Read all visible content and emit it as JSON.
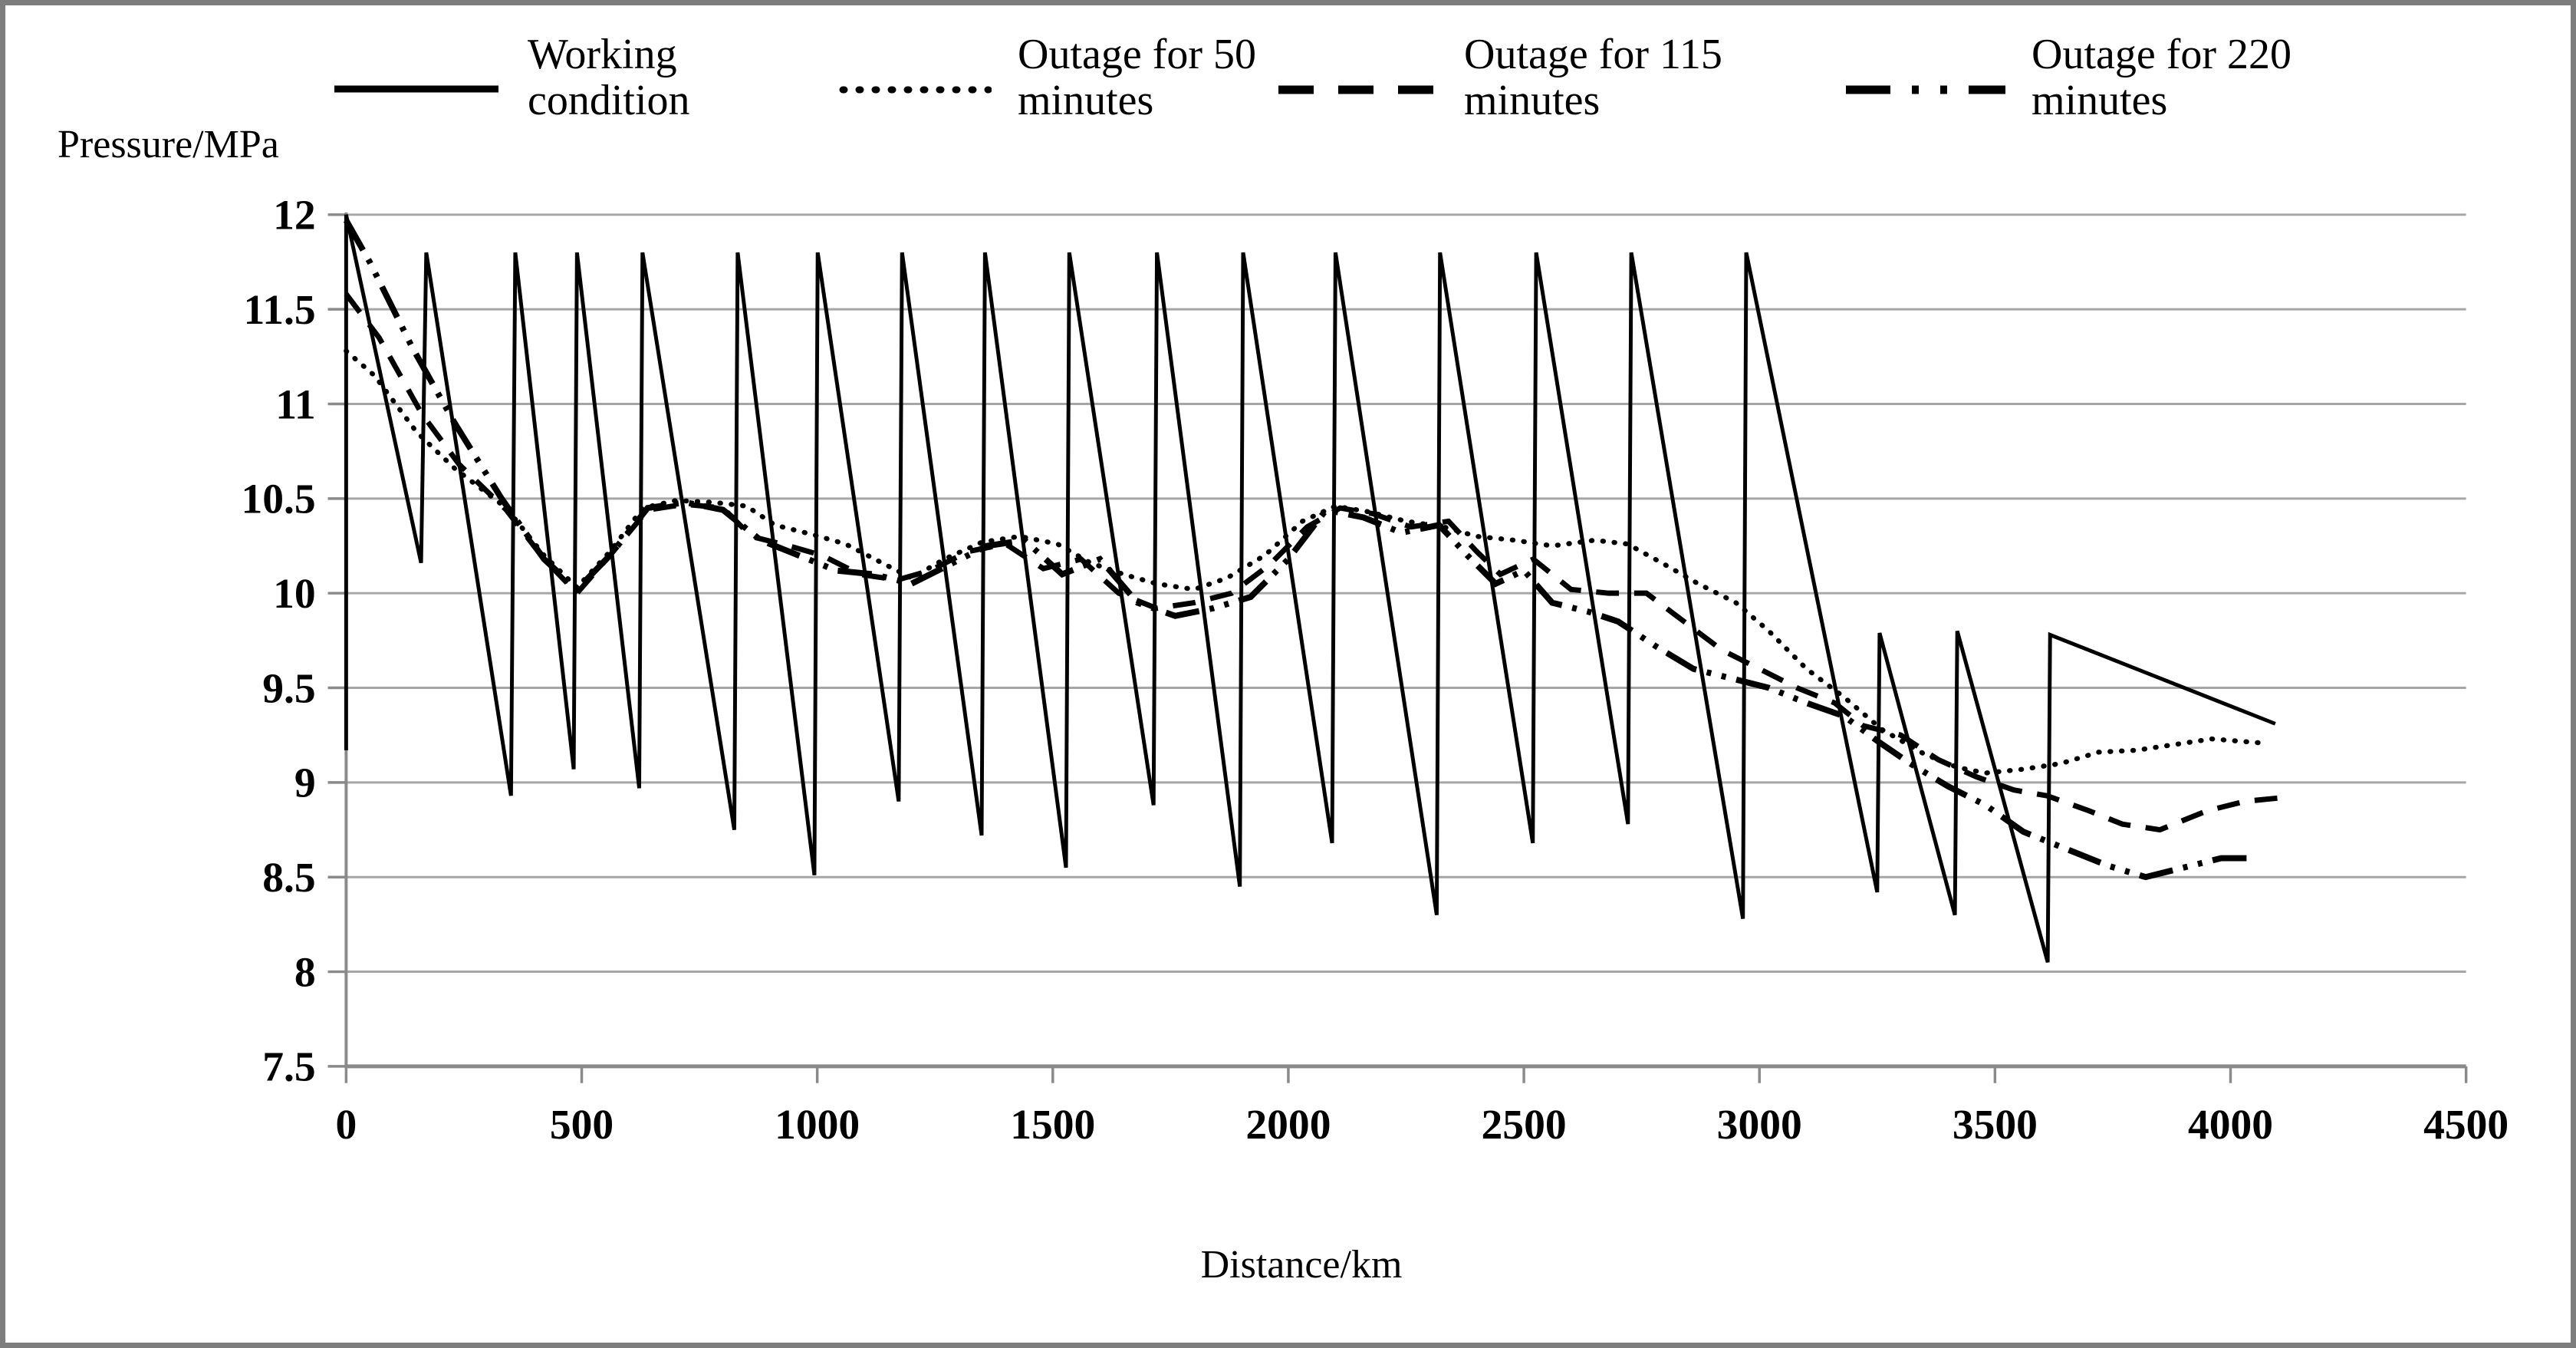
{
  "colors": {
    "series": "#000000",
    "gridline": "#a6a6a6",
    "axis": "#8a8a8a",
    "frame": "#7d7d7d",
    "background": "#ffffff",
    "text": "#000000"
  },
  "legend": {
    "items": [
      {
        "label": "Working condition",
        "style": "solid"
      },
      {
        "label": "Outage for 50 minutes",
        "style": "dotted"
      },
      {
        "label": "Outage for 115 minutes",
        "style": "dashed"
      },
      {
        "label": "Outage for 220 minutes",
        "style": "dash-dot"
      }
    ]
  },
  "chart_data": {
    "type": "line",
    "title": "",
    "xlabel": "Distance/km",
    "ylabel": "Pressure/MPa",
    "xlim": [
      0,
      4500
    ],
    "ylim": [
      7.5,
      12
    ],
    "grid": "horizontal-only",
    "legend_position": "top",
    "xtick_values": [
      0,
      500,
      1000,
      1500,
      2000,
      2500,
      3000,
      3500,
      4000,
      4500
    ],
    "xtick_labels": [
      "0",
      "500",
      "1000",
      "1500",
      "2000",
      "2500",
      "3000",
      "3500",
      "4000",
      "4500"
    ],
    "ytick_values": [
      7.5,
      8,
      8.5,
      9,
      9.5,
      10,
      10.5,
      11,
      11.5,
      12
    ],
    "ytick_labels": [
      "7.5",
      "8",
      "8.5",
      "9",
      "9.5",
      "10",
      "10.5",
      "11",
      "11.5",
      "12"
    ],
    "series": [
      {
        "name": "Working condition",
        "style": "solid",
        "points": [
          [
            0,
            9.17
          ],
          [
            0,
            12
          ],
          [
            159,
            10.16
          ],
          [
            170,
            11.8
          ],
          [
            350,
            8.93
          ],
          [
            359,
            11.8
          ],
          [
            483,
            9.07
          ],
          [
            490,
            11.8
          ],
          [
            622,
            8.97
          ],
          [
            629,
            11.8
          ],
          [
            824,
            8.75
          ],
          [
            831,
            11.8
          ],
          [
            994,
            8.51
          ],
          [
            1001,
            11.8
          ],
          [
            1173,
            8.9
          ],
          [
            1180,
            11.8
          ],
          [
            1349,
            8.72
          ],
          [
            1356,
            11.8
          ],
          [
            1528,
            8.55
          ],
          [
            1535,
            11.8
          ],
          [
            1714,
            8.88
          ],
          [
            1721,
            11.8
          ],
          [
            1897,
            8.45
          ],
          [
            1904,
            11.8
          ],
          [
            2093,
            8.68
          ],
          [
            2100,
            11.8
          ],
          [
            2315,
            8.3
          ],
          [
            2322,
            11.8
          ],
          [
            2519,
            8.68
          ],
          [
            2526,
            11.8
          ],
          [
            2721,
            8.78
          ],
          [
            2728,
            11.8
          ],
          [
            2965,
            8.28
          ],
          [
            2972,
            11.8
          ],
          [
            3250,
            8.42
          ],
          [
            3255,
            9.79
          ],
          [
            3415,
            8.3
          ],
          [
            3420,
            9.8
          ],
          [
            3612,
            8.05
          ],
          [
            3617,
            9.78
          ],
          [
            4095,
            9.31
          ]
        ]
      },
      {
        "name": "Outage for 50 minutes",
        "style": "dotted",
        "points": [
          [
            0,
            11.28
          ],
          [
            60,
            11.15
          ],
          [
            150,
            10.85
          ],
          [
            230,
            10.66
          ],
          [
            340,
            10.45
          ],
          [
            420,
            10.2
          ],
          [
            490,
            10.03
          ],
          [
            560,
            10.22
          ],
          [
            630,
            10.45
          ],
          [
            700,
            10.49
          ],
          [
            780,
            10.48
          ],
          [
            850,
            10.46
          ],
          [
            910,
            10.36
          ],
          [
            990,
            10.31
          ],
          [
            1060,
            10.26
          ],
          [
            1130,
            10.17
          ],
          [
            1200,
            10.08
          ],
          [
            1270,
            10.18
          ],
          [
            1350,
            10.27
          ],
          [
            1430,
            10.3
          ],
          [
            1510,
            10.26
          ],
          [
            1580,
            10.16
          ],
          [
            1650,
            10.1
          ],
          [
            1720,
            10.05
          ],
          [
            1800,
            10.02
          ],
          [
            1870,
            10.08
          ],
          [
            1950,
            10.2
          ],
          [
            2030,
            10.38
          ],
          [
            2100,
            10.46
          ],
          [
            2170,
            10.43
          ],
          [
            2250,
            10.38
          ],
          [
            2330,
            10.35
          ],
          [
            2400,
            10.3
          ],
          [
            2480,
            10.28
          ],
          [
            2560,
            10.25
          ],
          [
            2650,
            10.28
          ],
          [
            2720,
            10.26
          ],
          [
            2800,
            10.15
          ],
          [
            2870,
            10.05
          ],
          [
            2950,
            9.95
          ],
          [
            3020,
            9.8
          ],
          [
            3100,
            9.6
          ],
          [
            3180,
            9.45
          ],
          [
            3260,
            9.28
          ],
          [
            3350,
            9.15
          ],
          [
            3420,
            9.08
          ],
          [
            3480,
            9.05
          ],
          [
            3560,
            9.07
          ],
          [
            3640,
            9.1
          ],
          [
            3720,
            9.16
          ],
          [
            3800,
            9.17
          ],
          [
            3880,
            9.2
          ],
          [
            3960,
            9.23
          ],
          [
            4060,
            9.21
          ]
        ]
      },
      {
        "name": "Outage for 115 minutes",
        "style": "dashed",
        "points": [
          [
            0,
            11.58
          ],
          [
            70,
            11.35
          ],
          [
            160,
            10.95
          ],
          [
            240,
            10.68
          ],
          [
            340,
            10.44
          ],
          [
            420,
            10.18
          ],
          [
            490,
            10.0
          ],
          [
            560,
            10.2
          ],
          [
            640,
            10.44
          ],
          [
            720,
            10.47
          ],
          [
            800,
            10.45
          ],
          [
            860,
            10.3
          ],
          [
            940,
            10.25
          ],
          [
            1010,
            10.2
          ],
          [
            1090,
            10.1
          ],
          [
            1170,
            10.07
          ],
          [
            1240,
            10.12
          ],
          [
            1320,
            10.22
          ],
          [
            1400,
            10.26
          ],
          [
            1480,
            10.13
          ],
          [
            1560,
            10.18
          ],
          [
            1640,
            10.0
          ],
          [
            1720,
            9.92
          ],
          [
            1800,
            9.95
          ],
          [
            1880,
            10.0
          ],
          [
            1960,
            10.15
          ],
          [
            2040,
            10.35
          ],
          [
            2110,
            10.45
          ],
          [
            2180,
            10.42
          ],
          [
            2260,
            10.35
          ],
          [
            2340,
            10.38
          ],
          [
            2400,
            10.22
          ],
          [
            2450,
            10.1
          ],
          [
            2520,
            10.18
          ],
          [
            2600,
            10.02
          ],
          [
            2680,
            10.0
          ],
          [
            2760,
            10.0
          ],
          [
            2840,
            9.85
          ],
          [
            2920,
            9.7
          ],
          [
            3000,
            9.6
          ],
          [
            3080,
            9.5
          ],
          [
            3160,
            9.42
          ],
          [
            3220,
            9.3
          ],
          [
            3300,
            9.25
          ],
          [
            3380,
            9.12
          ],
          [
            3460,
            9.03
          ],
          [
            3540,
            8.96
          ],
          [
            3610,
            8.93
          ],
          [
            3700,
            8.85
          ],
          [
            3770,
            8.78
          ],
          [
            3850,
            8.75
          ],
          [
            3950,
            8.85
          ],
          [
            4030,
            8.9
          ],
          [
            4110,
            8.92
          ]
        ]
      },
      {
        "name": "Outage for 220 minutes",
        "style": "dash-dot",
        "points": [
          [
            0,
            11.97
          ],
          [
            50,
            11.75
          ],
          [
            140,
            11.3
          ],
          [
            230,
            10.9
          ],
          [
            330,
            10.5
          ],
          [
            420,
            10.18
          ],
          [
            490,
            10.02
          ],
          [
            560,
            10.2
          ],
          [
            640,
            10.45
          ],
          [
            720,
            10.48
          ],
          [
            800,
            10.44
          ],
          [
            880,
            10.28
          ],
          [
            960,
            10.2
          ],
          [
            1040,
            10.12
          ],
          [
            1120,
            10.1
          ],
          [
            1200,
            10.05
          ],
          [
            1280,
            10.15
          ],
          [
            1360,
            10.25
          ],
          [
            1440,
            10.28
          ],
          [
            1520,
            10.1
          ],
          [
            1600,
            10.18
          ],
          [
            1680,
            9.95
          ],
          [
            1760,
            9.88
          ],
          [
            1840,
            9.92
          ],
          [
            1920,
            9.98
          ],
          [
            2000,
            10.18
          ],
          [
            2080,
            10.44
          ],
          [
            2160,
            10.4
          ],
          [
            2240,
            10.32
          ],
          [
            2320,
            10.36
          ],
          [
            2380,
            10.2
          ],
          [
            2440,
            10.05
          ],
          [
            2500,
            10.12
          ],
          [
            2560,
            9.95
          ],
          [
            2640,
            9.9
          ],
          [
            2700,
            9.85
          ],
          [
            2780,
            9.72
          ],
          [
            2860,
            9.6
          ],
          [
            2940,
            9.55
          ],
          [
            3020,
            9.5
          ],
          [
            3100,
            9.42
          ],
          [
            3180,
            9.35
          ],
          [
            3250,
            9.22
          ],
          [
            3320,
            9.1
          ],
          [
            3400,
            8.98
          ],
          [
            3480,
            8.88
          ],
          [
            3560,
            8.74
          ],
          [
            3620,
            8.68
          ],
          [
            3680,
            8.62
          ],
          [
            3740,
            8.56
          ],
          [
            3820,
            8.5
          ],
          [
            3900,
            8.55
          ],
          [
            3980,
            8.6
          ],
          [
            4050,
            8.6
          ]
        ]
      }
    ]
  }
}
